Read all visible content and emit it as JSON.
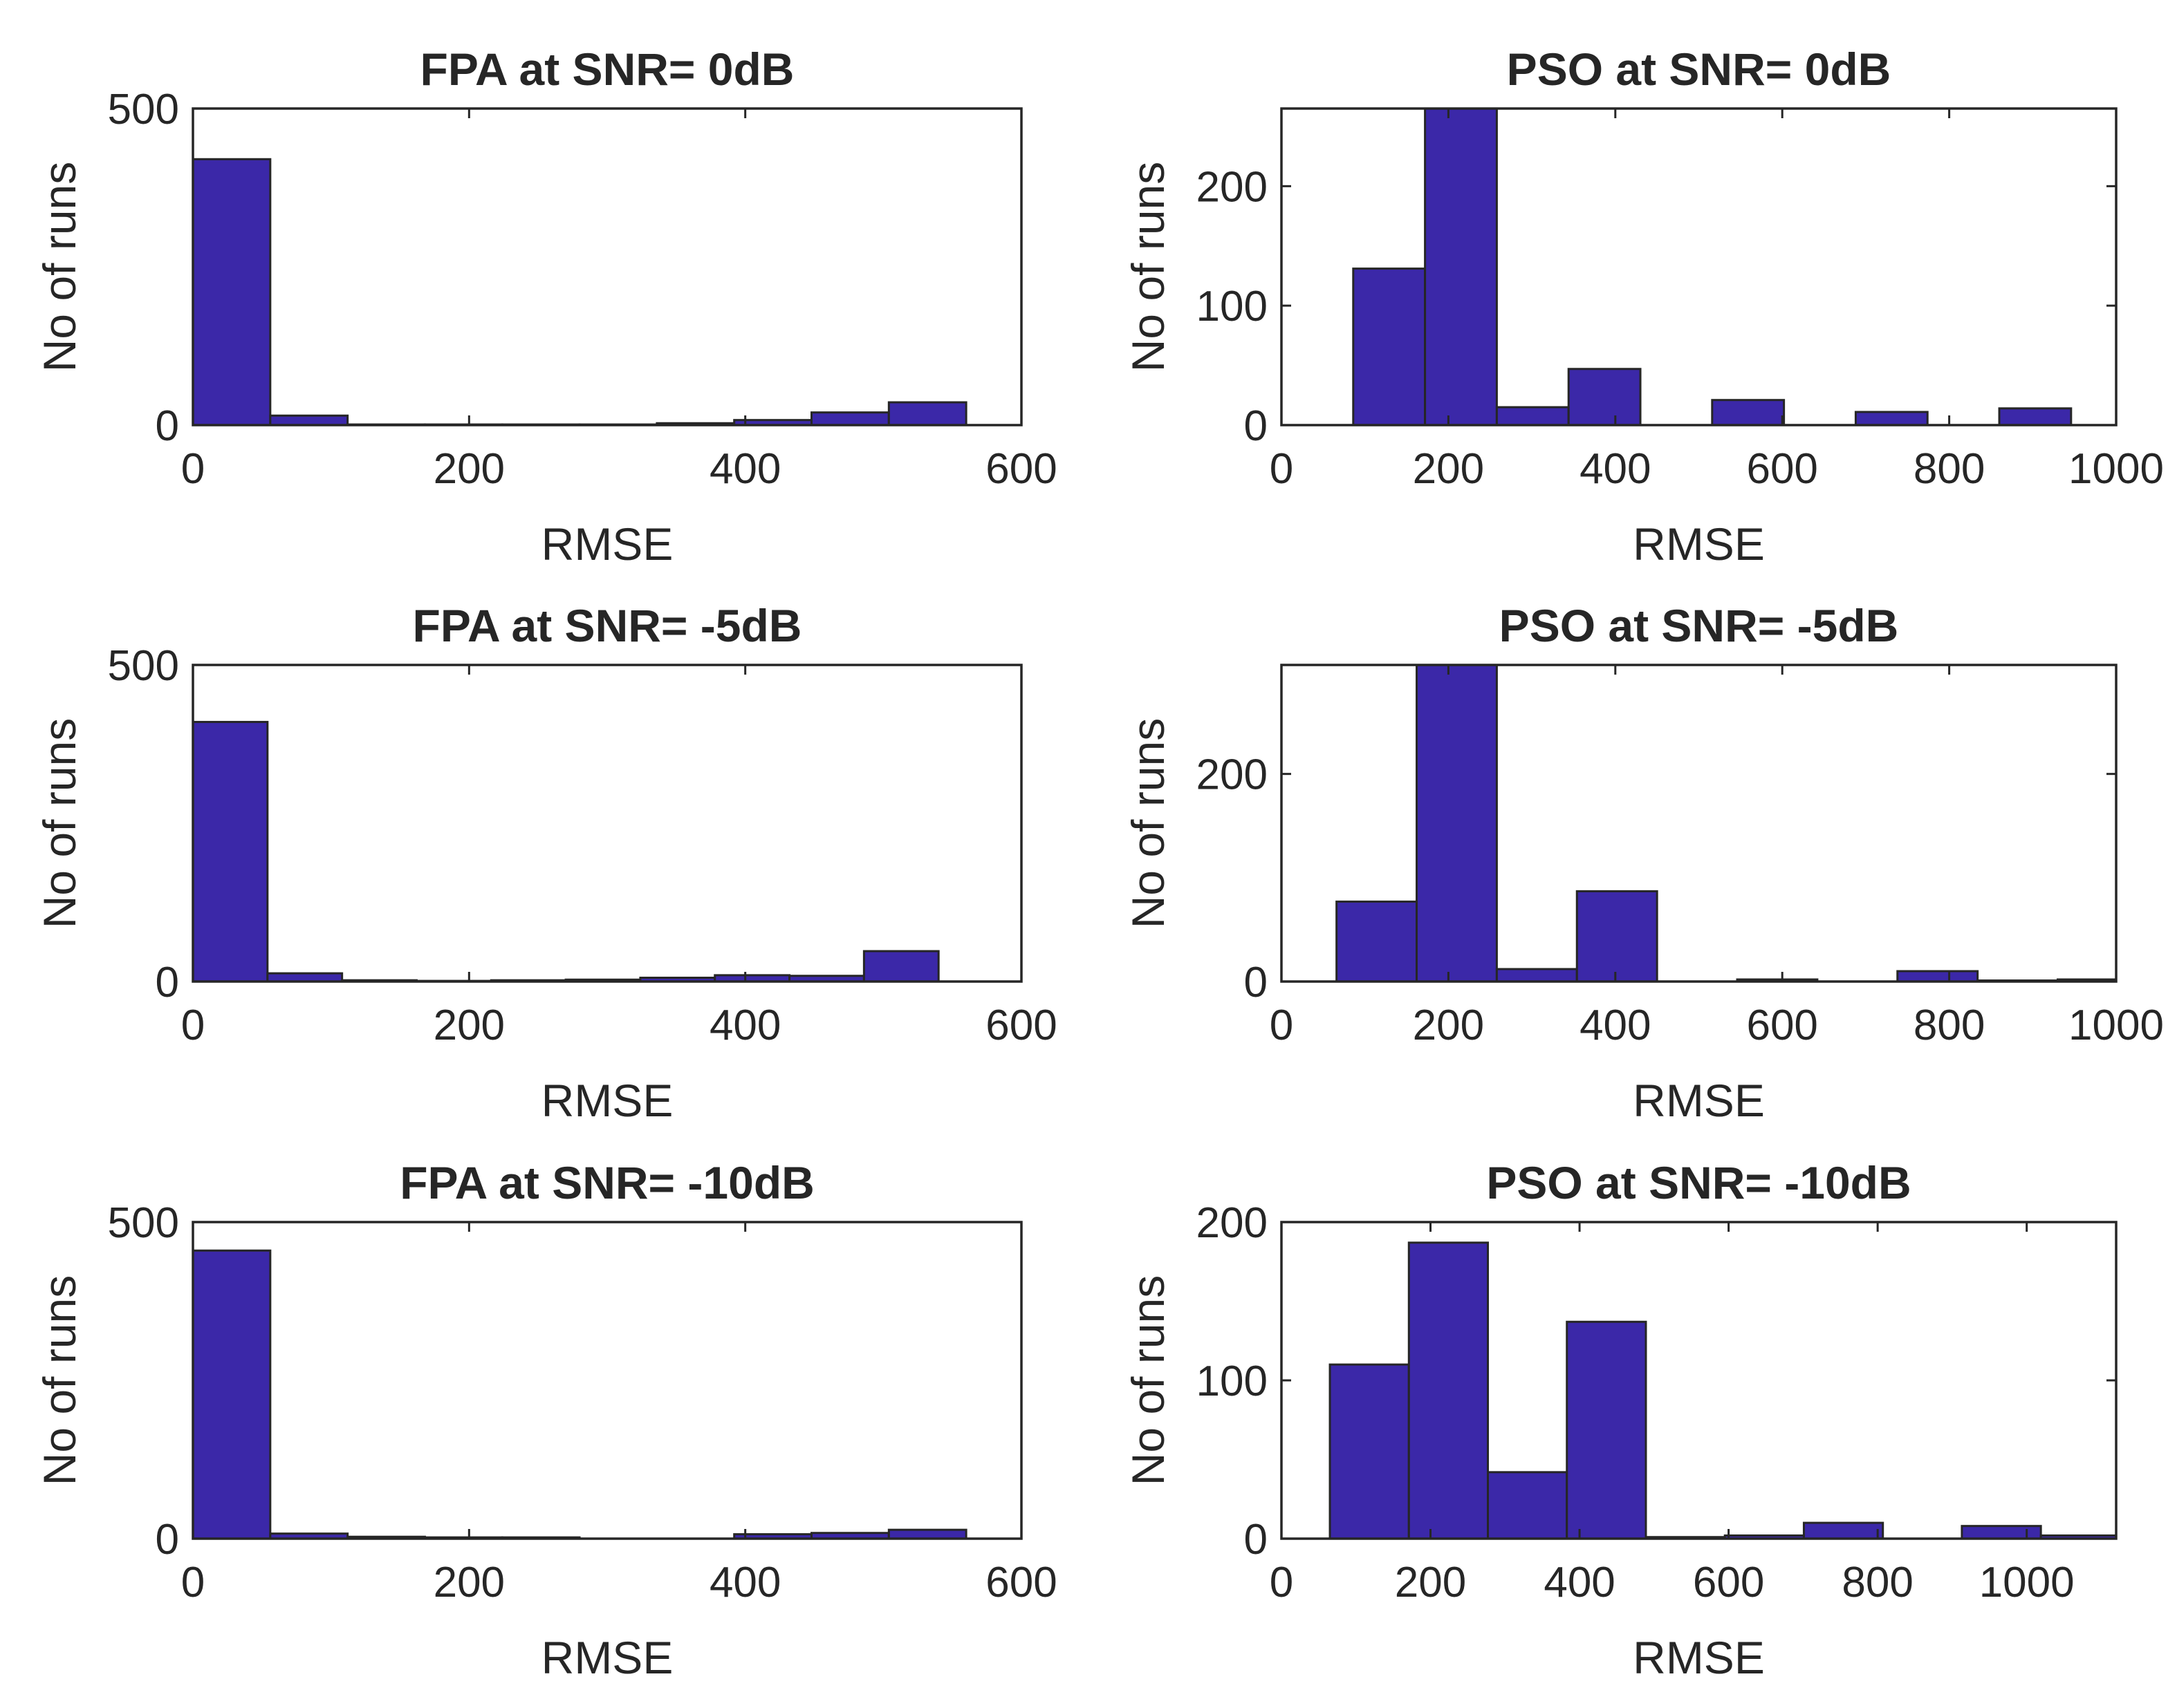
{
  "colors": {
    "bar_fill": "#3b28a8",
    "bar_stroke": "#262626",
    "axis": "#262626",
    "background": "#ffffff"
  },
  "chart_data": [
    {
      "type": "bar",
      "title": "FPA at SNR= 0dB",
      "xlabel": "RMSE",
      "ylabel": "No of runs",
      "xlim": [
        0,
        600
      ],
      "ylim": [
        0,
        500
      ],
      "xticks": [
        "0",
        "200",
        "400",
        "600"
      ],
      "yticks": [
        "0",
        "500"
      ],
      "bins": [
        {
          "x0": 0,
          "x1": 56,
          "value": 420
        },
        {
          "x0": 56,
          "x1": 112,
          "value": 15
        },
        {
          "x0": 112,
          "x1": 168,
          "value": 1
        },
        {
          "x0": 168,
          "x1": 224,
          "value": 1
        },
        {
          "x0": 224,
          "x1": 280,
          "value": 1
        },
        {
          "x0": 280,
          "x1": 336,
          "value": 1
        },
        {
          "x0": 336,
          "x1": 392,
          "value": 3
        },
        {
          "x0": 392,
          "x1": 448,
          "value": 8
        },
        {
          "x0": 448,
          "x1": 504,
          "value": 20
        },
        {
          "x0": 504,
          "x1": 560,
          "value": 36
        }
      ]
    },
    {
      "type": "bar",
      "title": "PSO at SNR= 0dB",
      "xlabel": "RMSE",
      "ylabel": "No of runs",
      "xlim": [
        0,
        1000
      ],
      "ylim": [
        0,
        265
      ],
      "xticks": [
        "0",
        "200",
        "400",
        "600",
        "800",
        "1000"
      ],
      "yticks": [
        "0",
        "100",
        "200"
      ],
      "bins": [
        {
          "x0": 86,
          "x1": 172,
          "value": 131
        },
        {
          "x0": 172,
          "x1": 258,
          "value": 265
        },
        {
          "x0": 258,
          "x1": 344,
          "value": 15
        },
        {
          "x0": 344,
          "x1": 430,
          "value": 47
        },
        {
          "x0": 516,
          "x1": 602,
          "value": 21
        },
        {
          "x0": 688,
          "x1": 774,
          "value": 11
        },
        {
          "x0": 860,
          "x1": 946,
          "value": 14
        }
      ]
    },
    {
      "type": "bar",
      "title": "FPA at SNR= -5dB",
      "xlabel": "RMSE",
      "ylabel": "No of runs",
      "xlim": [
        0,
        600
      ],
      "ylim": [
        0,
        500
      ],
      "xticks": [
        "0",
        "200",
        "400",
        "600"
      ],
      "yticks": [
        "0",
        "500"
      ],
      "bins": [
        {
          "x0": 0,
          "x1": 54,
          "value": 410
        },
        {
          "x0": 54,
          "x1": 108,
          "value": 13
        },
        {
          "x0": 108,
          "x1": 162,
          "value": 2
        },
        {
          "x0": 162,
          "x1": 216,
          "value": 1
        },
        {
          "x0": 216,
          "x1": 270,
          "value": 2
        },
        {
          "x0": 270,
          "x1": 324,
          "value": 3
        },
        {
          "x0": 324,
          "x1": 378,
          "value": 6
        },
        {
          "x0": 378,
          "x1": 432,
          "value": 10
        },
        {
          "x0": 432,
          "x1": 486,
          "value": 9
        },
        {
          "x0": 486,
          "x1": 540,
          "value": 48
        }
      ]
    },
    {
      "type": "bar",
      "title": "PSO at SNR= -5dB",
      "xlabel": "RMSE",
      "ylabel": "No of runs",
      "xlim": [
        0,
        1000
      ],
      "ylim": [
        0,
        305
      ],
      "xticks": [
        "0",
        "200",
        "400",
        "600",
        "800",
        "1000"
      ],
      "yticks": [
        "0",
        "200"
      ],
      "bins": [
        {
          "x0": 66,
          "x1": 162,
          "value": 77
        },
        {
          "x0": 162,
          "x1": 258,
          "value": 305
        },
        {
          "x0": 258,
          "x1": 354,
          "value": 12
        },
        {
          "x0": 354,
          "x1": 450,
          "value": 87
        },
        {
          "x0": 546,
          "x1": 642,
          "value": 2
        },
        {
          "x0": 738,
          "x1": 834,
          "value": 10
        },
        {
          "x0": 834,
          "x1": 930,
          "value": 1
        },
        {
          "x0": 930,
          "x1": 1026,
          "value": 2
        }
      ]
    },
    {
      "type": "bar",
      "title": "FPA at SNR= -10dB",
      "xlabel": "RMSE",
      "ylabel": "No of runs",
      "xlim": [
        0,
        600
      ],
      "ylim": [
        0,
        500
      ],
      "xticks": [
        "0",
        "200",
        "400",
        "600"
      ],
      "yticks": [
        "0",
        "500"
      ],
      "bins": [
        {
          "x0": 0,
          "x1": 56,
          "value": 455
        },
        {
          "x0": 56,
          "x1": 112,
          "value": 8
        },
        {
          "x0": 112,
          "x1": 168,
          "value": 3
        },
        {
          "x0": 168,
          "x1": 224,
          "value": 2
        },
        {
          "x0": 224,
          "x1": 280,
          "value": 2
        },
        {
          "x0": 392,
          "x1": 448,
          "value": 7
        },
        {
          "x0": 448,
          "x1": 504,
          "value": 9
        },
        {
          "x0": 504,
          "x1": 560,
          "value": 14
        }
      ]
    },
    {
      "type": "bar",
      "title": "PSO at SNR= -10dB",
      "xlabel": "RMSE",
      "ylabel": "No of runs",
      "xlim": [
        0,
        1120
      ],
      "ylim": [
        0,
        200
      ],
      "xticks": [
        "0",
        "200",
        "400",
        "600",
        "800",
        "1000"
      ],
      "yticks": [
        "0",
        "100",
        "200"
      ],
      "bins": [
        {
          "x0": 65,
          "x1": 171,
          "value": 110
        },
        {
          "x0": 171,
          "x1": 277,
          "value": 187
        },
        {
          "x0": 277,
          "x1": 383,
          "value": 42
        },
        {
          "x0": 383,
          "x1": 489,
          "value": 137
        },
        {
          "x0": 489,
          "x1": 595,
          "value": 1
        },
        {
          "x0": 595,
          "x1": 701,
          "value": 2
        },
        {
          "x0": 701,
          "x1": 807,
          "value": 10
        },
        {
          "x0": 913,
          "x1": 1019,
          "value": 8
        },
        {
          "x0": 1019,
          "x1": 1125,
          "value": 2
        }
      ]
    }
  ]
}
